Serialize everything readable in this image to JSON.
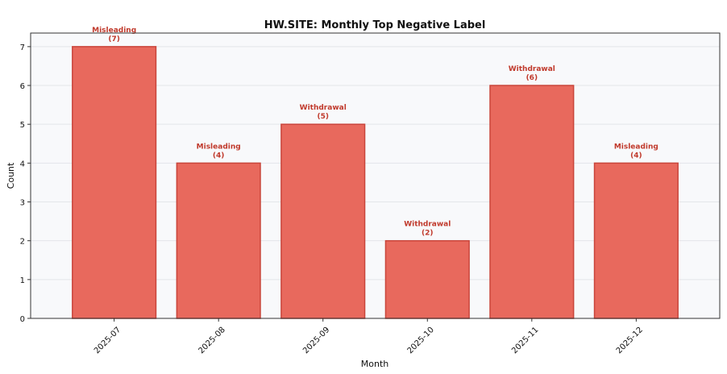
{
  "chart_data": {
    "type": "bar",
    "title": "HW.SITE: Monthly Top Negative Label",
    "xlabel": "Month",
    "ylabel": "Count",
    "categories": [
      "2025-07",
      "2025-08",
      "2025-09",
      "2025-10",
      "2025-11",
      "2025-12"
    ],
    "values": [
      7,
      4,
      5,
      2,
      6,
      4
    ],
    "bar_labels": [
      "Misleading",
      "Misleading",
      "Withdrawal",
      "Withdrawal",
      "Withdrawal",
      "Misleading"
    ],
    "bar_value_labels": [
      "(7)",
      "(4)",
      "(5)",
      "(2)",
      "(6)",
      "(4)"
    ],
    "ylim": [
      0,
      7.35
    ],
    "yticks": [
      0,
      1,
      2,
      3,
      4,
      5,
      6,
      7
    ],
    "grid": true,
    "legend": "none",
    "colors": {
      "bar_fill": "#e8695d",
      "bar_edge": "#c9453b",
      "label_text": "#c0392b",
      "plot_background": "#f8f9fb",
      "grid": "#e3e6ea",
      "axis": "#333333",
      "text": "#111111"
    }
  }
}
